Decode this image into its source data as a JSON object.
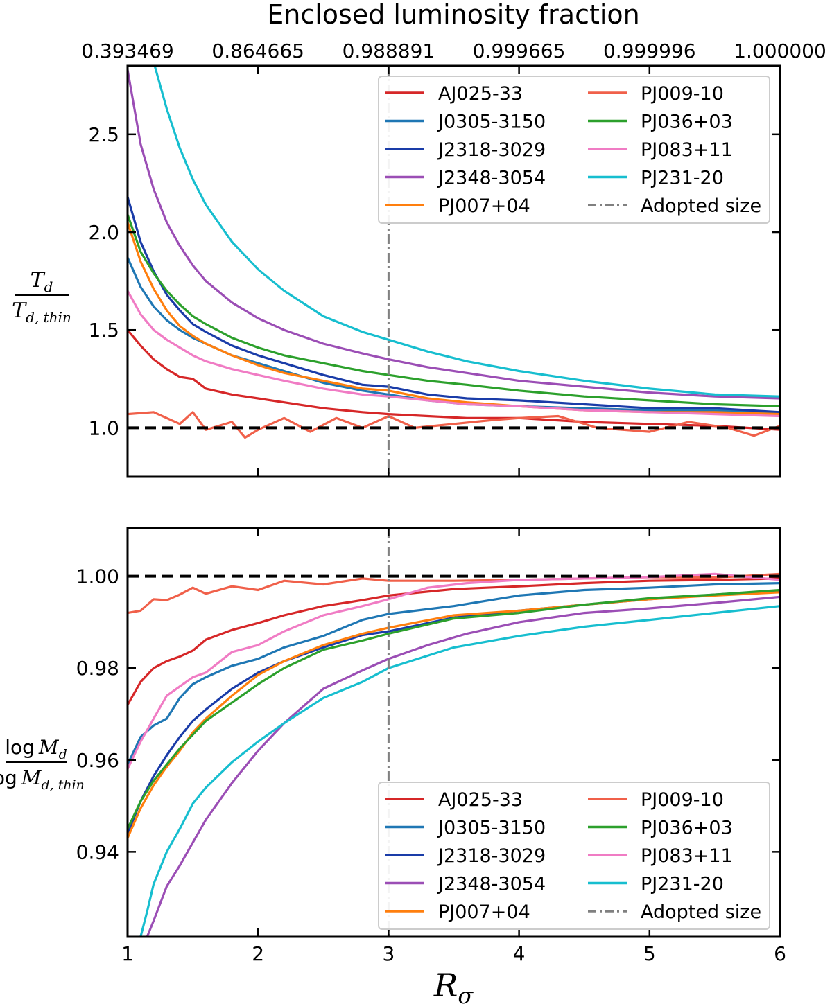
{
  "chart_data": [
    {
      "type": "line",
      "panel": "top",
      "title": "Enclosed luminosity fraction",
      "secondary_x_tick_labels": [
        "0.393469",
        "0.864665",
        "0.988891",
        "0.999665",
        "0.999996",
        "1.000000"
      ],
      "secondary_x_tick_positions": [
        1,
        2,
        3,
        4,
        5,
        6
      ],
      "xlabel": "",
      "ylabel_numerator": "T_d",
      "ylabel_denominator": "T_d,thin",
      "xlim": [
        1,
        6
      ],
      "ylim": [
        0.75,
        2.85
      ],
      "xticks": [
        1,
        2,
        3,
        4,
        5,
        6
      ],
      "xtick_labels": [
        "",
        "",
        "",
        "",
        "",
        ""
      ],
      "yticks": [
        1.0,
        1.5,
        2.0,
        2.5
      ],
      "ytick_labels": [
        "1.0",
        "1.5",
        "2.0",
        "2.5"
      ],
      "reference_line": {
        "y": 1.0,
        "style": "dashed",
        "color": "#000000"
      },
      "adopted_size_line": {
        "x": 3,
        "style": "dash-dot",
        "color": "#808080"
      },
      "legend_position": "top-right",
      "series": [
        {
          "name": "AJ025-33",
          "color": "#d62728",
          "x": [
            1,
            1.1,
            1.2,
            1.3,
            1.4,
            1.5,
            1.6,
            1.8,
            2.0,
            2.2,
            2.5,
            2.8,
            3.0,
            3.3,
            3.6,
            4.0,
            4.5,
            5.0,
            5.5,
            6.0
          ],
          "values": [
            1.5,
            1.42,
            1.35,
            1.3,
            1.26,
            1.25,
            1.2,
            1.17,
            1.15,
            1.13,
            1.1,
            1.08,
            1.07,
            1.06,
            1.05,
            1.05,
            1.03,
            1.02,
            1.01,
            0.99
          ]
        },
        {
          "name": "J0305-3150",
          "color": "#1f77b4",
          "x": [
            1,
            1.1,
            1.2,
            1.3,
            1.4,
            1.5,
            1.6,
            1.8,
            2.0,
            2.2,
            2.5,
            2.8,
            3.0,
            3.3,
            3.6,
            4.0,
            4.5,
            5.0,
            5.5,
            6.0
          ],
          "values": [
            1.87,
            1.72,
            1.62,
            1.55,
            1.5,
            1.46,
            1.43,
            1.37,
            1.33,
            1.29,
            1.23,
            1.19,
            1.17,
            1.14,
            1.12,
            1.11,
            1.1,
            1.09,
            1.09,
            1.08
          ]
        },
        {
          "name": "J2318-3029",
          "color": "#1a3ca8",
          "x": [
            1,
            1.1,
            1.2,
            1.3,
            1.4,
            1.5,
            1.6,
            1.8,
            2.0,
            2.2,
            2.5,
            2.8,
            3.0,
            3.3,
            3.6,
            4.0,
            4.5,
            5.0,
            5.5,
            6.0
          ],
          "values": [
            2.18,
            1.95,
            1.8,
            1.68,
            1.6,
            1.53,
            1.49,
            1.42,
            1.37,
            1.33,
            1.27,
            1.22,
            1.21,
            1.17,
            1.15,
            1.14,
            1.12,
            1.1,
            1.1,
            1.08
          ]
        },
        {
          "name": "J2348-3054",
          "color": "#9b4eb5",
          "x": [
            1,
            1.1,
            1.2,
            1.3,
            1.4,
            1.5,
            1.6,
            1.8,
            2.0,
            2.2,
            2.5,
            2.8,
            3.0,
            3.3,
            3.6,
            4.0,
            4.5,
            5.0,
            5.5,
            6.0
          ],
          "values": [
            2.83,
            2.45,
            2.22,
            2.05,
            1.93,
            1.83,
            1.75,
            1.64,
            1.56,
            1.5,
            1.43,
            1.38,
            1.35,
            1.31,
            1.28,
            1.24,
            1.21,
            1.18,
            1.16,
            1.15
          ]
        },
        {
          "name": "PJ007+04",
          "color": "#ff7f0e",
          "x": [
            1,
            1.1,
            1.2,
            1.3,
            1.4,
            1.5,
            1.6,
            1.8,
            2.0,
            2.2,
            2.5,
            2.8,
            3.0,
            3.3,
            3.6,
            4.0,
            4.5,
            5.0,
            5.5,
            6.0
          ],
          "values": [
            2.05,
            1.85,
            1.71,
            1.6,
            1.52,
            1.47,
            1.43,
            1.37,
            1.32,
            1.28,
            1.24,
            1.2,
            1.19,
            1.15,
            1.13,
            1.11,
            1.09,
            1.08,
            1.08,
            1.07
          ]
        },
        {
          "name": "PJ009-10",
          "color": "#f0604a",
          "x": [
            1,
            1.2,
            1.4,
            1.5,
            1.6,
            1.8,
            1.9,
            2.0,
            2.2,
            2.4,
            2.6,
            2.8,
            3.0,
            3.2,
            3.5,
            3.8,
            4.0,
            4.3,
            4.6,
            5.0,
            5.3,
            5.6,
            5.8,
            6.0
          ],
          "values": [
            1.07,
            1.08,
            1.02,
            1.08,
            0.99,
            1.03,
            0.95,
            0.99,
            1.05,
            0.98,
            1.05,
            1.0,
            1.06,
            1.0,
            1.02,
            1.04,
            1.05,
            1.06,
            1.0,
            0.98,
            1.03,
            1.0,
            0.96,
            1.01
          ]
        },
        {
          "name": "PJ036+03",
          "color": "#2ca02c",
          "x": [
            1,
            1.1,
            1.2,
            1.3,
            1.4,
            1.5,
            1.6,
            1.8,
            2.0,
            2.2,
            2.5,
            2.8,
            3.0,
            3.3,
            3.6,
            4.0,
            4.5,
            5.0,
            5.5,
            6.0
          ],
          "values": [
            2.09,
            1.9,
            1.79,
            1.7,
            1.63,
            1.57,
            1.53,
            1.46,
            1.41,
            1.37,
            1.33,
            1.29,
            1.27,
            1.24,
            1.22,
            1.19,
            1.16,
            1.14,
            1.12,
            1.11
          ]
        },
        {
          "name": "PJ083+11",
          "color": "#f07cc4",
          "x": [
            1,
            1.1,
            1.2,
            1.3,
            1.4,
            1.5,
            1.6,
            1.8,
            2.0,
            2.2,
            2.5,
            2.8,
            3.0,
            3.3,
            3.6,
            4.0,
            4.5,
            5.0,
            5.5,
            6.0
          ],
          "values": [
            1.7,
            1.58,
            1.5,
            1.45,
            1.41,
            1.37,
            1.34,
            1.3,
            1.27,
            1.24,
            1.2,
            1.17,
            1.16,
            1.14,
            1.12,
            1.11,
            1.09,
            1.08,
            1.07,
            1.06
          ]
        },
        {
          "name": "PJ231-20",
          "color": "#17becf",
          "x": [
            1.2,
            1.3,
            1.4,
            1.5,
            1.6,
            1.8,
            2.0,
            2.2,
            2.5,
            2.8,
            3.0,
            3.3,
            3.6,
            4.0,
            4.5,
            5.0,
            5.5,
            6.0
          ],
          "values": [
            2.87,
            2.63,
            2.43,
            2.27,
            2.14,
            1.95,
            1.81,
            1.7,
            1.57,
            1.49,
            1.45,
            1.39,
            1.34,
            1.29,
            1.24,
            1.2,
            1.17,
            1.16
          ]
        }
      ]
    },
    {
      "type": "line",
      "panel": "bottom",
      "title": "",
      "xlabel": "R_σ",
      "ylabel_numerator": "log M_d",
      "ylabel_denominator": "log M_d,thin",
      "xlim": [
        1,
        6
      ],
      "ylim": [
        0.9215,
        1.0105
      ],
      "xticks": [
        1,
        2,
        3,
        4,
        5,
        6
      ],
      "xtick_labels": [
        "1",
        "2",
        "3",
        "4",
        "5",
        "6"
      ],
      "yticks": [
        0.94,
        0.96,
        0.98,
        1.0
      ],
      "ytick_labels": [
        "0.94",
        "0.96",
        "0.98",
        "1.00"
      ],
      "reference_line": {
        "y": 1.0,
        "style": "dashed",
        "color": "#000000"
      },
      "adopted_size_line": {
        "x": 3,
        "style": "dash-dot",
        "color": "#808080"
      },
      "legend_position": "bottom-right",
      "series": [
        {
          "name": "AJ025-33",
          "color": "#d62728",
          "x": [
            1,
            1.1,
            1.2,
            1.3,
            1.4,
            1.5,
            1.6,
            1.8,
            2.0,
            2.2,
            2.5,
            2.8,
            3.0,
            3.5,
            4.0,
            4.5,
            5.0,
            5.5,
            6.0
          ],
          "values": [
            0.972,
            0.977,
            0.98,
            0.9815,
            0.9825,
            0.9838,
            0.9862,
            0.9883,
            0.9898,
            0.9915,
            0.9935,
            0.9948,
            0.9958,
            0.9972,
            0.9978,
            0.9985,
            0.999,
            0.9992,
            0.9995
          ]
        },
        {
          "name": "J0305-3150",
          "color": "#1f77b4",
          "x": [
            1,
            1.1,
            1.2,
            1.3,
            1.4,
            1.5,
            1.6,
            1.8,
            2.0,
            2.2,
            2.5,
            2.8,
            3.0,
            3.5,
            4.0,
            4.5,
            5.0,
            5.5,
            6.0
          ],
          "values": [
            0.959,
            0.965,
            0.9675,
            0.969,
            0.9735,
            0.9765,
            0.978,
            0.9805,
            0.982,
            0.9845,
            0.987,
            0.9905,
            0.9918,
            0.9935,
            0.9958,
            0.997,
            0.9975,
            0.9982,
            0.9985
          ]
        },
        {
          "name": "J2318-3029",
          "color": "#1a3ca8",
          "x": [
            1,
            1.1,
            1.2,
            1.3,
            1.4,
            1.5,
            1.6,
            1.8,
            2.0,
            2.2,
            2.5,
            2.8,
            3.0,
            3.5,
            4.0,
            4.5,
            5.0,
            5.5,
            6.0
          ],
          "values": [
            0.944,
            0.951,
            0.9565,
            0.961,
            0.965,
            0.9685,
            0.971,
            0.9755,
            0.979,
            0.9815,
            0.9845,
            0.9872,
            0.988,
            0.991,
            0.9925,
            0.9938,
            0.995,
            0.996,
            0.9968
          ]
        },
        {
          "name": "J2348-3054",
          "color": "#9b4eb5",
          "x": [
            1.15,
            1.2,
            1.3,
            1.4,
            1.5,
            1.6,
            1.8,
            2.0,
            2.2,
            2.5,
            2.8,
            3.0,
            3.3,
            3.6,
            4.0,
            4.5,
            5.0,
            5.5,
            6.0
          ],
          "values": [
            0.9215,
            0.925,
            0.9325,
            0.937,
            0.942,
            0.947,
            0.955,
            0.962,
            0.968,
            0.9755,
            0.9795,
            0.982,
            0.985,
            0.9875,
            0.99,
            0.992,
            0.993,
            0.9942,
            0.9955
          ]
        },
        {
          "name": "PJ007+04",
          "color": "#ff7f0e",
          "x": [
            1,
            1.1,
            1.2,
            1.3,
            1.4,
            1.5,
            1.6,
            1.8,
            2.0,
            2.2,
            2.5,
            2.8,
            3.0,
            3.5,
            4.0,
            4.5,
            5.0,
            5.5,
            6.0
          ],
          "values": [
            0.943,
            0.9495,
            0.9545,
            0.9585,
            0.962,
            0.966,
            0.969,
            0.974,
            0.9785,
            0.9815,
            0.985,
            0.9875,
            0.9888,
            0.9915,
            0.9925,
            0.9938,
            0.995,
            0.9958,
            0.9965
          ]
        },
        {
          "name": "PJ009-10",
          "color": "#f0604a",
          "x": [
            1,
            1.1,
            1.2,
            1.3,
            1.4,
            1.5,
            1.6,
            1.8,
            2.0,
            2.2,
            2.5,
            2.8,
            3.0,
            3.5,
            4.0,
            4.5,
            5.0,
            5.5,
            6.0
          ],
          "values": [
            0.992,
            0.9925,
            0.995,
            0.9948,
            0.996,
            0.9975,
            0.9962,
            0.9978,
            0.997,
            0.999,
            0.9982,
            0.9995,
            0.999,
            0.999,
            0.9992,
            0.9995,
            0.9998,
            0.9997,
            1.0005
          ]
        },
        {
          "name": "PJ036+03",
          "color": "#2ca02c",
          "x": [
            1,
            1.1,
            1.2,
            1.3,
            1.4,
            1.5,
            1.6,
            1.8,
            2.0,
            2.2,
            2.5,
            2.8,
            3.0,
            3.5,
            4.0,
            4.5,
            5.0,
            5.5,
            6.0
          ],
          "values": [
            0.945,
            0.951,
            0.9555,
            0.959,
            0.9625,
            0.9655,
            0.9685,
            0.9725,
            0.9765,
            0.98,
            0.984,
            0.986,
            0.9875,
            0.9908,
            0.992,
            0.9938,
            0.9952,
            0.996,
            0.997
          ]
        },
        {
          "name": "PJ083+11",
          "color": "#f07cc4",
          "x": [
            1,
            1.1,
            1.2,
            1.3,
            1.4,
            1.5,
            1.6,
            1.8,
            2.0,
            2.2,
            2.5,
            2.8,
            3.0,
            3.3,
            3.6,
            4.0,
            4.5,
            5.0,
            5.5,
            6.0
          ],
          "values": [
            0.958,
            0.964,
            0.969,
            0.974,
            0.976,
            0.978,
            0.979,
            0.9835,
            0.985,
            0.988,
            0.9915,
            0.9935,
            0.995,
            0.9975,
            0.9985,
            0.9992,
            0.9995,
            0.9998,
            1.0005,
            0.9992
          ]
        },
        {
          "name": "PJ231-20",
          "color": "#17becf",
          "x": [
            1.1,
            1.15,
            1.2,
            1.3,
            1.4,
            1.5,
            1.6,
            1.8,
            2.0,
            2.2,
            2.5,
            2.8,
            3.0,
            3.5,
            4.0,
            4.5,
            5.0,
            5.5,
            6.0
          ],
          "values": [
            0.9215,
            0.927,
            0.933,
            0.94,
            0.945,
            0.9505,
            0.954,
            0.9595,
            0.964,
            0.968,
            0.9735,
            0.977,
            0.98,
            0.9845,
            0.987,
            0.989,
            0.9905,
            0.992,
            0.9935
          ]
        }
      ]
    }
  ],
  "legend": {
    "entries": [
      "AJ025-33",
      "J0305-3150",
      "J2318-3029",
      "J2348-3054",
      "PJ007+04",
      "PJ009-10",
      "PJ036+03",
      "PJ083+11",
      "PJ231-20",
      "Adopted size"
    ],
    "adopted_label": "Adopted size"
  },
  "labels": {
    "top_title": "Enclosed luminosity fraction",
    "top_ylabel_num_sym": "T",
    "top_ylabel_num_sub": "d",
    "top_ylabel_den_sym": "T",
    "top_ylabel_den_sub": "d, thin",
    "bottom_ylabel_num_log": "log",
    "bottom_ylabel_num_sym": "M",
    "bottom_ylabel_num_sub": "d",
    "bottom_ylabel_den_log": "log",
    "bottom_ylabel_den_sym": "M",
    "bottom_ylabel_den_sub": "d, thin",
    "xlabel_sym": "R",
    "xlabel_sub": "σ"
  }
}
